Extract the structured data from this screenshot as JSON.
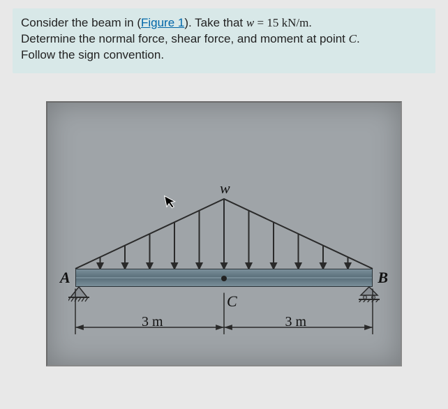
{
  "problem": {
    "line1_pre": "Consider the beam in (",
    "figure_link": "Figure 1",
    "line1_post": "). Take that ",
    "w_var": "w",
    "equals": " = ",
    "w_value": "15",
    "w_unit": " kN/m",
    "line1_end": ".",
    "line2_pre": "Determine the normal force, shear force, and moment at point ",
    "point": "C",
    "line2_end": ".",
    "line3": "Follow the sign convention."
  },
  "figure": {
    "type": "diagram",
    "background_color": "#9fa4a8",
    "beam": {
      "span_m": 6,
      "colors": [
        "#7a8f9a",
        "#5c717c",
        "#8aa0ab"
      ]
    },
    "load": {
      "shape": "triangular-symmetric",
      "peak_value_kn_per_m": 15,
      "peak_label": "w",
      "arrow_count": 13,
      "fill_color": "none",
      "line_color": "#2a2a2a",
      "arrow_color": "#2a2a2a"
    },
    "supports": {
      "A": {
        "type": "pin",
        "position_m": 0,
        "label": "A"
      },
      "B": {
        "type": "roller",
        "position_m": 6,
        "label": "B"
      }
    },
    "point_C": {
      "position_m": 3,
      "label": "C"
    },
    "dimensions": {
      "left": {
        "value": 3,
        "unit": "m",
        "text": "3 m"
      },
      "right": {
        "value": 3,
        "unit": "m",
        "text": "3 m"
      },
      "tick_color": "#2a2a2a"
    },
    "colors": {
      "panel_border": "#888",
      "text": "#111"
    },
    "font": {
      "family": "Times New Roman",
      "style": "italic",
      "label_size_pt": 16
    }
  }
}
